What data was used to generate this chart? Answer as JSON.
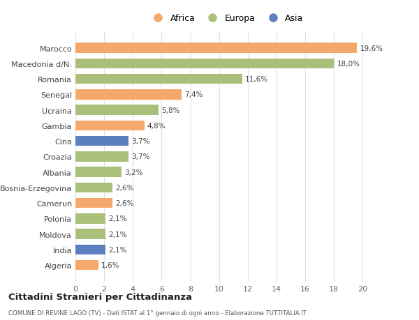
{
  "categories": [
    "Algeria",
    "India",
    "Moldova",
    "Polonia",
    "Camerun",
    "Bosnia-Erzegovina",
    "Albania",
    "Croazia",
    "Cina",
    "Gambia",
    "Ucraina",
    "Senegal",
    "Romania",
    "Macedonia d/N.",
    "Marocco"
  ],
  "values": [
    1.6,
    2.1,
    2.1,
    2.1,
    2.6,
    2.6,
    3.2,
    3.7,
    3.7,
    4.8,
    5.8,
    7.4,
    11.6,
    18.0,
    19.6
  ],
  "labels": [
    "1,6%",
    "2,1%",
    "2,1%",
    "2,1%",
    "2,6%",
    "2,6%",
    "3,2%",
    "3,7%",
    "3,7%",
    "4,8%",
    "5,8%",
    "7,4%",
    "11,6%",
    "18,0%",
    "19,6%"
  ],
  "continents": [
    "Africa",
    "Asia",
    "Europa",
    "Europa",
    "Africa",
    "Europa",
    "Europa",
    "Europa",
    "Asia",
    "Africa",
    "Europa",
    "Africa",
    "Europa",
    "Europa",
    "Africa"
  ],
  "continent_colors": {
    "Africa": "#F4A96A",
    "Europa": "#AABF7A",
    "Asia": "#5B7FBF"
  },
  "legend_order": [
    "Africa",
    "Europa",
    "Asia"
  ],
  "title_main": "Cittadini Stranieri per Cittadinanza",
  "title_sub": "COMUNE DI REVINE LAGO (TV) - Dati ISTAT al 1° gennaio di ogni anno - Elaborazione TUTTITALIA.IT",
  "xlim": [
    0,
    21
  ],
  "xticks": [
    0,
    2,
    4,
    6,
    8,
    10,
    12,
    14,
    16,
    18,
    20
  ],
  "bg_color": "#ffffff",
  "grid_color": "#e0e0e0",
  "bar_height": 0.65
}
